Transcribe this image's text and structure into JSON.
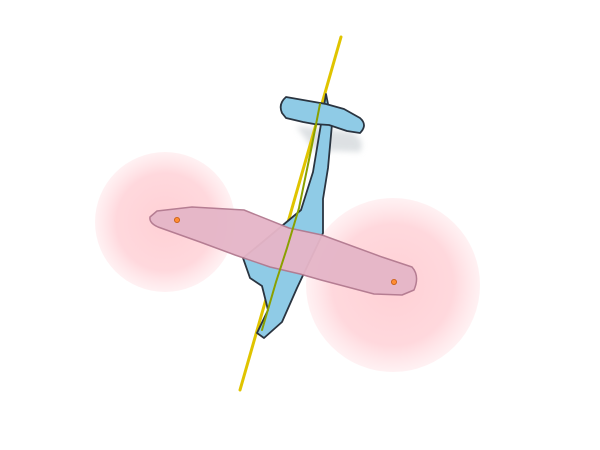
{
  "scene": {
    "subject": "aircraft-top-view",
    "colors": {
      "background": "#ffffff",
      "fuselage_fill": "#8fcbe6",
      "fuselage_stroke": "#2a3440",
      "spine_line": "#8aa000",
      "wing_fill": "#e6b6c8",
      "wing_stroke": "#b27a90",
      "lift_zone_fill": "#ff9aa6",
      "lift_zone_opacity": 0.5,
      "marker_fill": "#ff8c33",
      "shadow": "#d2d6da",
      "axis_line": "#e0c400"
    },
    "elements": {
      "axis_line": "thrust-axis-line",
      "fuselage": "fuselage",
      "wing": "main-wing",
      "tail": "tail-plane",
      "lift_zones": [
        "lift-zone-left",
        "lift-zone-right"
      ],
      "markers": [
        "wing-marker-left",
        "wing-marker-right"
      ]
    }
  }
}
